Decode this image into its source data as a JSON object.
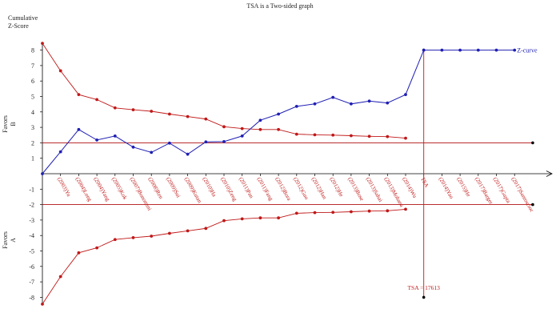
{
  "chart_data": {
    "type": "line",
    "title": "TSA is a Two-sided graph",
    "ylabel_line1": "Cumulative",
    "ylabel_line2": "Z-Score",
    "favors_b_line1": "Favors",
    "favors_b_line2": "B",
    "favors_a_line1": "Favors",
    "favors_a_line2": "A",
    "ylim": [
      -8.5,
      8.5
    ],
    "y_ticks": [
      -8,
      -7,
      -6,
      -5,
      -4,
      -3,
      -2,
      -1,
      1,
      2,
      3,
      4,
      5,
      6,
      7,
      8
    ],
    "conventional_boundary": 2,
    "categories": [
      "(2003)Yu",
      "(2004)Long",
      "(2004)Yang",
      "(2005)Kok",
      "(2007)Bonomini",
      "(2008)Ren",
      "(2009)Sui",
      "(2009)Kutan",
      "(2010)Ha",
      "(2010)Zeng",
      "(2011)Pan",
      "(2011)Fang",
      "(2012)Bora",
      "(2012)Guo",
      "(2012)Han",
      "(2012)He",
      "(2013)Bose",
      "(2013)Sahai",
      "(2013)Mohana",
      "(2014)Wu",
      "TSA",
      "(2014)Yao",
      "(2015)He",
      "(2017)Barger",
      "(2017)Gupta",
      "(2017)Santoscioc"
    ],
    "z_curve_name": "Z-curve",
    "z_curve": [
      0.0,
      1.42,
      2.86,
      2.18,
      2.44,
      1.72,
      1.38,
      1.98,
      1.26,
      2.06,
      2.08,
      2.44,
      3.46,
      3.86,
      4.36,
      4.52,
      4.94,
      4.52,
      4.7,
      4.58,
      5.12,
      8.0,
      8.0,
      8.0,
      8.0,
      8.0,
      8.0
    ],
    "upper_boundary": [
      8.44,
      6.66,
      5.12,
      4.8,
      4.26,
      4.14,
      4.04,
      3.86,
      3.7,
      3.54,
      3.04,
      2.92,
      2.86,
      2.86,
      2.56,
      2.52,
      2.5,
      2.46,
      2.42,
      2.4,
      2.3
    ],
    "lower_boundary": [
      -8.44,
      -6.66,
      -5.12,
      -4.8,
      -4.26,
      -4.14,
      -4.04,
      -3.86,
      -3.7,
      -3.54,
      -3.04,
      -2.92,
      -2.86,
      -2.86,
      -2.56,
      -2.52,
      -2.5,
      -2.46,
      -2.42,
      -2.4,
      -2.3
    ],
    "tsa_label": "TSA = 17613",
    "tsa_line_top": 8,
    "tsa_line_bottom": -8,
    "colors": {
      "z_curve": "#1f1fb4",
      "boundary": "#c01818",
      "conventional": "#b01010",
      "axis": "#000000",
      "text": "#222222",
      "category_text": "#c01818"
    }
  }
}
